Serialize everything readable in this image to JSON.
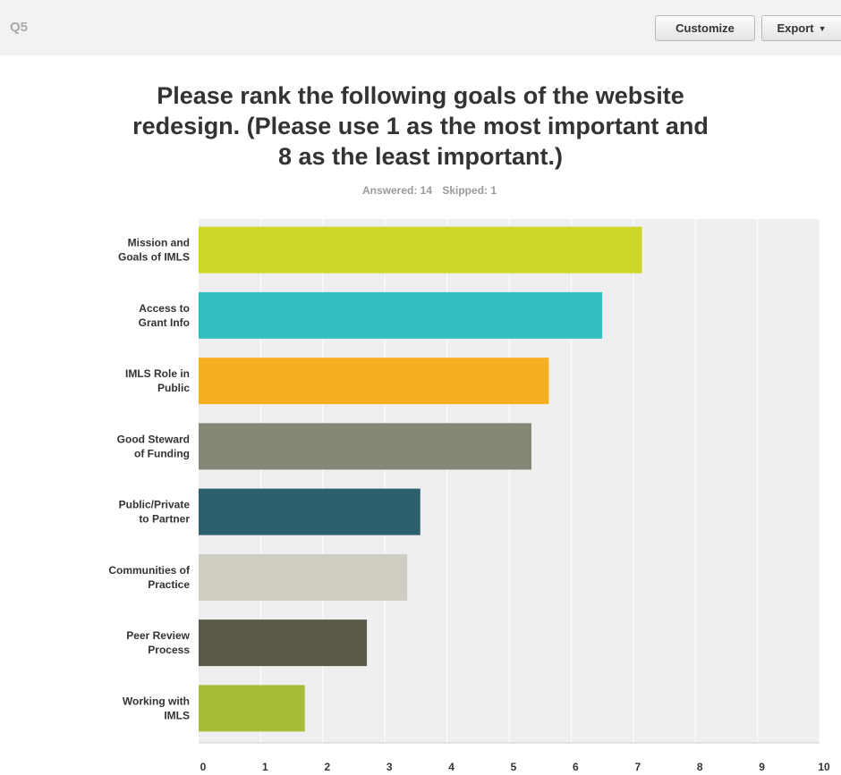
{
  "header": {
    "question": "Q5",
    "customize_label": "Customize",
    "export_label": "Export"
  },
  "stats": {
    "answered": "Answered: 14",
    "skipped": "Skipped: 1"
  },
  "colors": {
    "plot_bg": "#efefef",
    "grid": "#ffffff"
  },
  "chart_data": {
    "type": "bar",
    "orientation": "horizontal",
    "title": "Please rank the following goals of the website redesign. (Please use 1 as the most important and 8 as the least important.)",
    "categories": [
      "Mission and Goals of IMLS",
      "Access to Grant Info",
      "IMLS Role in Public",
      "Good Steward of Funding",
      "Public/Private to Partner",
      "Communities of Practice",
      "Peer Review Process",
      "Working with IMLS"
    ],
    "category_lines": [
      [
        "Mission and",
        "Goals of IMLS"
      ],
      [
        "Access to",
        "Grant Info"
      ],
      [
        "IMLS Role in",
        "Public"
      ],
      [
        "Good Steward",
        "of Funding"
      ],
      [
        "Public/Private",
        "to Partner"
      ],
      [
        "Communities of",
        "Practice"
      ],
      [
        "Peer Review",
        "Process"
      ],
      [
        "Working with",
        "IMLS"
      ]
    ],
    "values": [
      7.14,
      6.5,
      5.64,
      5.36,
      3.57,
      3.36,
      2.71,
      1.71
    ],
    "bar_colors": [
      "#cdd529",
      "#33bfc1",
      "#f6ae22",
      "#878778",
      "#2e5f6c",
      "#cfccc1",
      "#5b5948",
      "#a7bc37"
    ],
    "xlim": [
      0,
      10
    ],
    "xticks": [
      "0",
      "1",
      "2",
      "3",
      "4",
      "5",
      "6",
      "7",
      "8",
      "9",
      "10"
    ],
    "grid": true
  }
}
